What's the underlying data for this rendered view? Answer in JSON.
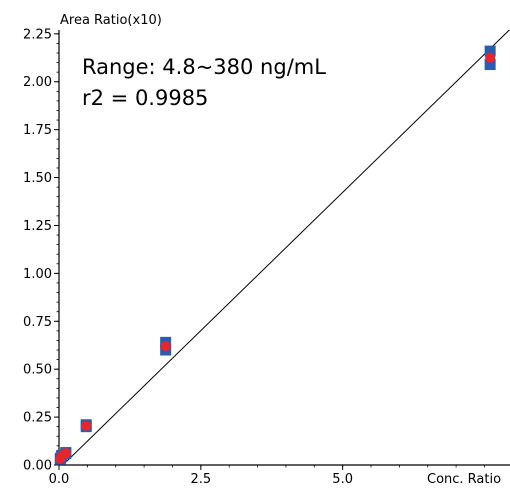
{
  "chart_data": {
    "type": "scatter",
    "title": "",
    "xlabel": "Conc. Ratio",
    "ylabel": "Area Ratio(x10)",
    "xlim": [
      0,
      7.95
    ],
    "ylim": [
      0,
      2.27
    ],
    "x_ticks": [
      "0.0",
      "2.5",
      "5.0"
    ],
    "y_ticks": [
      "0.00",
      "0.25",
      "0.50",
      "0.75",
      "1.00",
      "1.25",
      "1.50",
      "1.75",
      "2.00",
      "2.25"
    ],
    "x_tick_values": [
      0,
      2.5,
      5.0
    ],
    "y_tick_values": [
      0,
      0.25,
      0.5,
      0.75,
      1.0,
      1.25,
      1.5,
      1.75,
      2.0,
      2.25
    ],
    "annotations": [
      "Range: 4.8~380 ng/mL",
      "r2 = 0.9985"
    ],
    "grid": false,
    "colors": {
      "replicate": "#2a5db0",
      "mean": "#e8252c",
      "fit_line": "#000000"
    },
    "series": [
      {
        "values": [
          [
            0.024,
            0.03
          ],
          [
            0.024,
            0.035
          ],
          [
            0.048,
            0.045
          ],
          [
            0.048,
            0.05
          ],
          [
            0.12,
            0.06
          ],
          [
            0.12,
            0.065
          ],
          [
            0.48,
            0.2
          ],
          [
            0.48,
            0.21
          ],
          [
            1.88,
            0.6
          ],
          [
            1.88,
            0.64
          ],
          [
            7.6,
            2.09
          ],
          [
            7.6,
            2.16
          ]
        ]
      },
      {
        "values": [
          [
            0.024,
            0.032
          ],
          [
            0.048,
            0.048
          ],
          [
            0.12,
            0.062
          ],
          [
            0.48,
            0.205
          ],
          [
            1.88,
            0.62
          ],
          [
            7.6,
            2.125
          ]
        ]
      }
    ],
    "fit_line": {
      "slope": 0.2885,
      "intercept": -0.02
    }
  }
}
